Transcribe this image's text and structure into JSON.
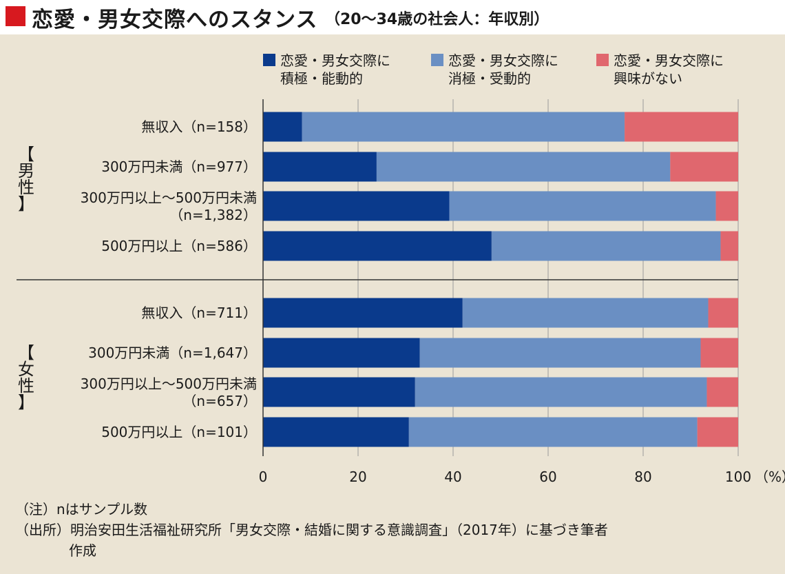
{
  "title": {
    "main": "恋愛・男女交際へのスタンス",
    "sub": "（20～34歳の社会人：年収別）"
  },
  "legend": [
    {
      "lines": [
        "恋愛・男女交際に",
        "積極・能動的"
      ],
      "color": "#0a3a8c"
    },
    {
      "lines": [
        "恋愛・男女交際に",
        "消極・受動的"
      ],
      "color": "#6a8fc3"
    },
    {
      "lines": [
        "恋愛・男女交際に",
        "興味がない"
      ],
      "color": "#e0676e"
    }
  ],
  "groups": [
    {
      "label": [
        "【",
        "男",
        "性",
        "】"
      ]
    },
    {
      "label": [
        "【",
        "女",
        "性",
        "】"
      ]
    }
  ],
  "chart_data": {
    "type": "bar",
    "orientation": "horizontal",
    "stacked": true,
    "categories": [
      [
        "無収入（n=158）"
      ],
      [
        "300万円未満（n=977）"
      ],
      [
        "300万円以上～500万円未満",
        "（n=1,382）"
      ],
      [
        "500万円以上（n=586）"
      ],
      [
        "無収入（n=711）"
      ],
      [
        "300万円未満（n=1,647）"
      ],
      [
        "300万円以上～500万円未満",
        "（n=657）"
      ],
      [
        "500万円以上（n=101）"
      ]
    ],
    "series": [
      {
        "name": "恋愛・男女交際に積極・能動的",
        "color": "#0a3a8c",
        "values": [
          8.2,
          23.9,
          39.2,
          48.1,
          42.0,
          33.0,
          32.0,
          30.7
        ]
      },
      {
        "name": "恋愛・男女交際に消極・受動的",
        "color": "#6a8fc3",
        "values": [
          67.9,
          61.8,
          56.1,
          48.2,
          51.7,
          59.1,
          61.4,
          60.7
        ]
      },
      {
        "name": "恋愛・男女交際に興味がない",
        "color": "#e0676e",
        "values": [
          23.9,
          14.3,
          4.7,
          3.7,
          6.3,
          7.9,
          6.6,
          8.6
        ]
      }
    ],
    "x_ticks": [
      "0",
      "20",
      "40",
      "60",
      "80",
      "100"
    ],
    "x_unit": "（%）",
    "xlim": [
      0,
      100
    ],
    "grid": true
  },
  "notes": [
    "（注）nはサンプル数",
    "（出所）明治安田生活福祉研究所「男女交際・結婚に関する意識調査」（2017年）に基づき筆者",
    "作成"
  ]
}
